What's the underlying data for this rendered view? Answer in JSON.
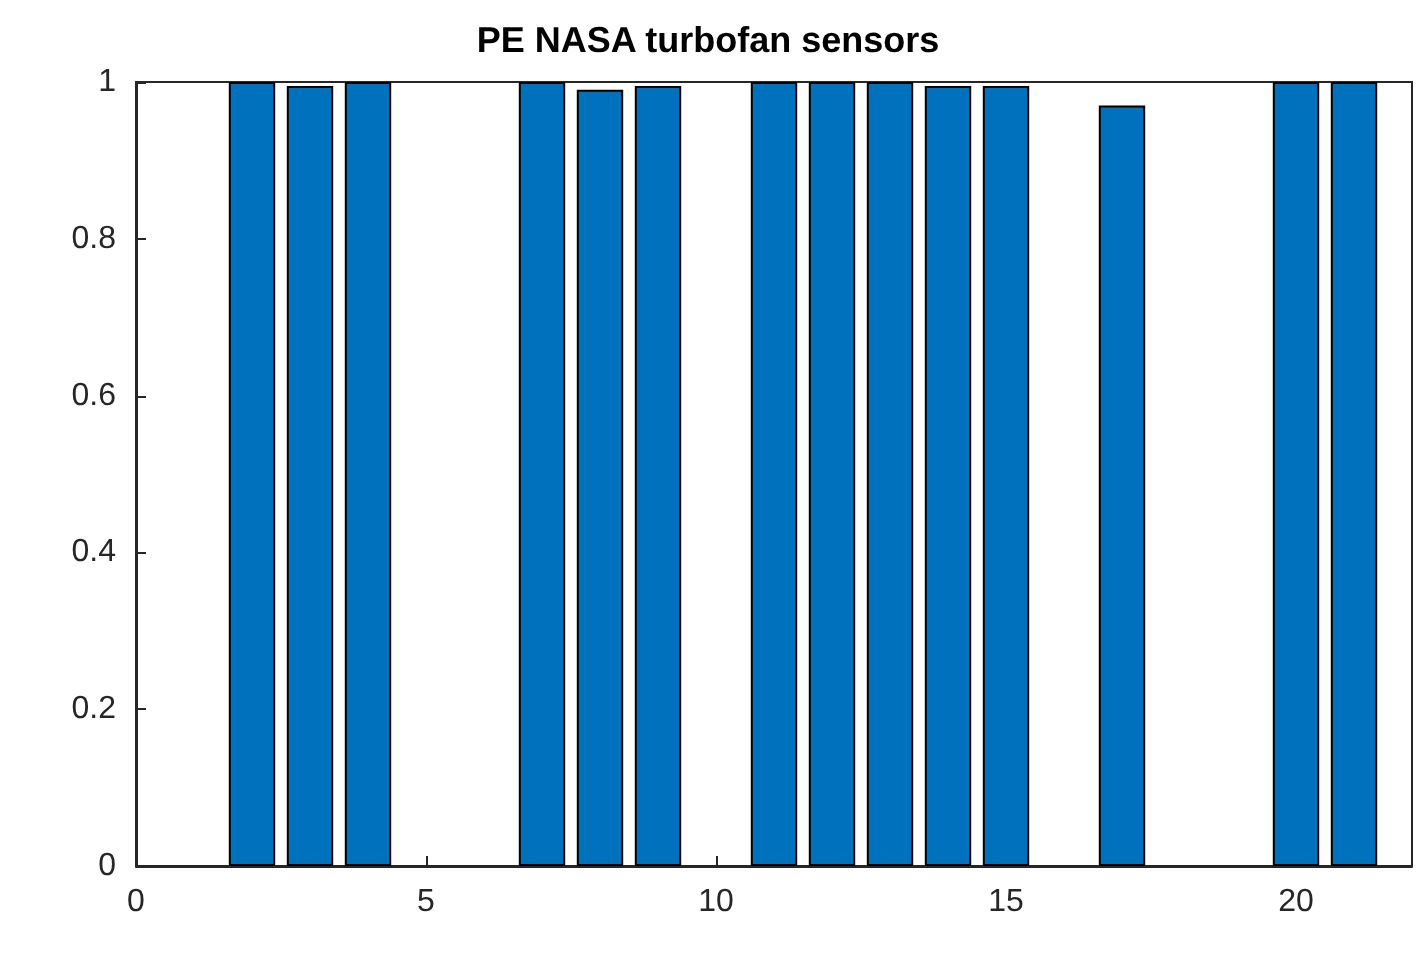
{
  "chart_data": {
    "type": "bar",
    "title": "PE NASA turbofan sensors",
    "x": [
      2,
      3,
      4,
      7,
      8,
      9,
      11,
      12,
      13,
      14,
      15,
      17,
      20,
      21
    ],
    "values": [
      1,
      0.995,
      1,
      1,
      0.99,
      0.995,
      1,
      1,
      1,
      0.995,
      0.995,
      0.97,
      1,
      1
    ],
    "color": "#0072bd",
    "xlim": [
      0,
      22
    ],
    "xticks": [
      0,
      5,
      10,
      15,
      20
    ],
    "ylim": [
      0,
      1
    ],
    "yticks": [
      0,
      0.2,
      0.4,
      0.6,
      0.8,
      1
    ],
    "grid": false
  }
}
